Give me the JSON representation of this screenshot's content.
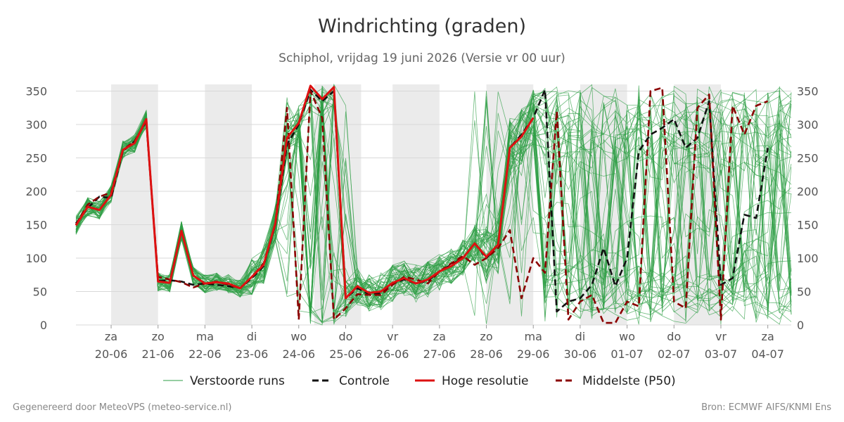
{
  "header": {
    "title": "Windrichting (graden)",
    "subtitle": "Schiphol, vrijdag 19 juni 2026 (Versie vr 00 uur)"
  },
  "footer": {
    "left": "Gegenereerd door MeteoVPS (meteo-service.nl)",
    "right": "Bron: ECMWF AIFS/KNMI Ens"
  },
  "chart_data": {
    "type": "line",
    "title": "Windrichting (graden)",
    "ylim": [
      0,
      360
    ],
    "yticks": [
      0,
      50,
      100,
      150,
      200,
      250,
      300,
      350
    ],
    "xlim": [
      -0.75,
      14.5
    ],
    "xticks": [
      {
        "x": 0,
        "day": "za",
        "date": "20-06"
      },
      {
        "x": 1,
        "day": "zo",
        "date": "21-06"
      },
      {
        "x": 2,
        "day": "ma",
        "date": "22-06"
      },
      {
        "x": 3,
        "day": "di",
        "date": "23-06"
      },
      {
        "x": 4,
        "day": "wo",
        "date": "24-06"
      },
      {
        "x": 5,
        "day": "do",
        "date": "25-06"
      },
      {
        "x": 6,
        "day": "vr",
        "date": "26-06"
      },
      {
        "x": 7,
        "day": "za",
        "date": "27-06"
      },
      {
        "x": 8,
        "day": "zo",
        "date": "28-06"
      },
      {
        "x": 9,
        "day": "ma",
        "date": "29-06"
      },
      {
        "x": 10,
        "day": "di",
        "date": "30-06"
      },
      {
        "x": 11,
        "day": "wo",
        "date": "01-07"
      },
      {
        "x": 12,
        "day": "do",
        "date": "02-07"
      },
      {
        "x": 13,
        "day": "vr",
        "date": "03-07"
      },
      {
        "x": 14,
        "day": "za",
        "date": "04-07"
      }
    ],
    "weekend_shading": [
      [
        0,
        1
      ],
      [
        2,
        3
      ],
      [
        4.33,
        5.33
      ],
      [
        6,
        7
      ],
      [
        8,
        9
      ],
      [
        10,
        11
      ],
      [
        12,
        13
      ]
    ],
    "grid": true,
    "legend_position": "bottom",
    "legend": [
      "Verstoorde runs",
      "Controle",
      "Hoge resolutie",
      "Middelste (P50)"
    ],
    "series": [
      {
        "name": "Hoge resolutie",
        "color": "#dd1111",
        "dash": "solid",
        "points": [
          [
            -0.75,
            149
          ],
          [
            -0.5,
            177
          ],
          [
            -0.25,
            172
          ],
          [
            0,
            195
          ],
          [
            0.25,
            262
          ],
          [
            0.5,
            272
          ],
          [
            0.75,
            308
          ],
          [
            1,
            65
          ],
          [
            1.25,
            63
          ],
          [
            1.5,
            141
          ],
          [
            1.75,
            74
          ],
          [
            2,
            62
          ],
          [
            2.25,
            64
          ],
          [
            2.5,
            62
          ],
          [
            2.75,
            55
          ],
          [
            3,
            72
          ],
          [
            3.25,
            90
          ],
          [
            3.5,
            152
          ],
          [
            3.75,
            280
          ],
          [
            4,
            302
          ],
          [
            4.25,
            358
          ],
          [
            4.5,
            338
          ],
          [
            4.75,
            356
          ],
          [
            5,
            40
          ],
          [
            5.25,
            58
          ],
          [
            5.5,
            48
          ],
          [
            5.75,
            50
          ],
          [
            6,
            63
          ],
          [
            6.25,
            70
          ],
          [
            6.5,
            62
          ],
          [
            6.75,
            68
          ],
          [
            7,
            80
          ],
          [
            7.25,
            88
          ],
          [
            7.5,
            100
          ],
          [
            7.75,
            122
          ],
          [
            8,
            102
          ],
          [
            8.25,
            120
          ],
          [
            8.5,
            265
          ],
          [
            8.75,
            282
          ],
          [
            9,
            310
          ]
        ]
      },
      {
        "name": "Controle",
        "color": "#111111",
        "dash": "dashed",
        "points": [
          [
            -0.75,
            152
          ],
          [
            -0.5,
            175
          ],
          [
            -0.25,
            192
          ],
          [
            0,
            190
          ],
          [
            0.25,
            260
          ],
          [
            0.5,
            275
          ],
          [
            0.75,
            305
          ],
          [
            1,
            66
          ],
          [
            1.25,
            67
          ],
          [
            1.5,
            65
          ],
          [
            1.75,
            60
          ],
          [
            2,
            62
          ],
          [
            2.25,
            60
          ],
          [
            2.5,
            58
          ],
          [
            2.75,
            55
          ],
          [
            3,
            70
          ],
          [
            3.25,
            88
          ],
          [
            3.5,
            150
          ],
          [
            3.75,
            270
          ],
          [
            4,
            300
          ],
          [
            4.25,
            352
          ],
          [
            4.5,
            335
          ],
          [
            4.75,
            350
          ],
          [
            5,
            40
          ],
          [
            5.25,
            55
          ],
          [
            5.5,
            46
          ],
          [
            5.75,
            48
          ],
          [
            6,
            62
          ],
          [
            6.25,
            68
          ],
          [
            6.5,
            62
          ],
          [
            6.75,
            66
          ],
          [
            7,
            80
          ],
          [
            7.25,
            90
          ],
          [
            7.5,
            100
          ],
          [
            7.75,
            122
          ],
          [
            8,
            100
          ],
          [
            8.25,
            120
          ],
          [
            8.5,
            265
          ],
          [
            8.75,
            285
          ],
          [
            9,
            310
          ],
          [
            9.25,
            352
          ],
          [
            9.5,
            20
          ],
          [
            9.75,
            35
          ],
          [
            10,
            40
          ],
          [
            10.25,
            60
          ],
          [
            10.5,
            115
          ],
          [
            10.75,
            58
          ],
          [
            11,
            100
          ],
          [
            11.25,
            260
          ],
          [
            11.5,
            285
          ],
          [
            11.75,
            295
          ],
          [
            12,
            308
          ],
          [
            12.25,
            265
          ],
          [
            12.5,
            280
          ],
          [
            12.75,
            335
          ],
          [
            13,
            60
          ],
          [
            13.25,
            70
          ],
          [
            13.5,
            165
          ],
          [
            13.75,
            160
          ],
          [
            14,
            265
          ]
        ]
      },
      {
        "name": "Middelste (P50)",
        "color": "#8b0000",
        "dash": "dashed",
        "points": [
          [
            -0.75,
            150
          ],
          [
            -0.5,
            180
          ],
          [
            -0.25,
            192
          ],
          [
            0,
            198
          ],
          [
            0.25,
            262
          ],
          [
            0.5,
            275
          ],
          [
            0.75,
            305
          ],
          [
            1,
            72
          ],
          [
            1.25,
            68
          ],
          [
            1.5,
            64
          ],
          [
            1.75,
            56
          ],
          [
            2,
            62
          ],
          [
            2.25,
            65
          ],
          [
            2.5,
            60
          ],
          [
            2.75,
            55
          ],
          [
            3,
            72
          ],
          [
            3.25,
            92
          ],
          [
            3.5,
            150
          ],
          [
            3.75,
            325
          ],
          [
            4,
            8
          ],
          [
            4.25,
            350
          ],
          [
            4.5,
            310
          ],
          [
            4.75,
            8
          ],
          [
            5,
            25
          ],
          [
            5.25,
            46
          ],
          [
            5.5,
            45
          ],
          [
            5.75,
            45
          ],
          [
            6,
            60
          ],
          [
            6.25,
            72
          ],
          [
            6.5,
            68
          ],
          [
            6.75,
            62
          ],
          [
            7,
            80
          ],
          [
            7.25,
            92
          ],
          [
            7.5,
            103
          ],
          [
            7.75,
            90
          ],
          [
            8,
            100
          ],
          [
            8.25,
            115
          ],
          [
            8.5,
            142
          ],
          [
            8.75,
            40
          ],
          [
            9,
            100
          ],
          [
            9.25,
            78
          ],
          [
            9.5,
            320
          ],
          [
            9.75,
            8
          ],
          [
            10,
            35
          ],
          [
            10.25,
            45
          ],
          [
            10.5,
            3
          ],
          [
            10.75,
            3
          ],
          [
            11,
            35
          ],
          [
            11.25,
            28
          ],
          [
            11.5,
            350
          ],
          [
            11.75,
            355
          ],
          [
            12,
            35
          ],
          [
            12.25,
            25
          ],
          [
            12.5,
            325
          ],
          [
            12.75,
            345
          ],
          [
            13,
            8
          ],
          [
            13.25,
            328
          ],
          [
            13.5,
            285
          ],
          [
            13.75,
            328
          ],
          [
            14,
            335
          ]
        ]
      }
    ]
  }
}
